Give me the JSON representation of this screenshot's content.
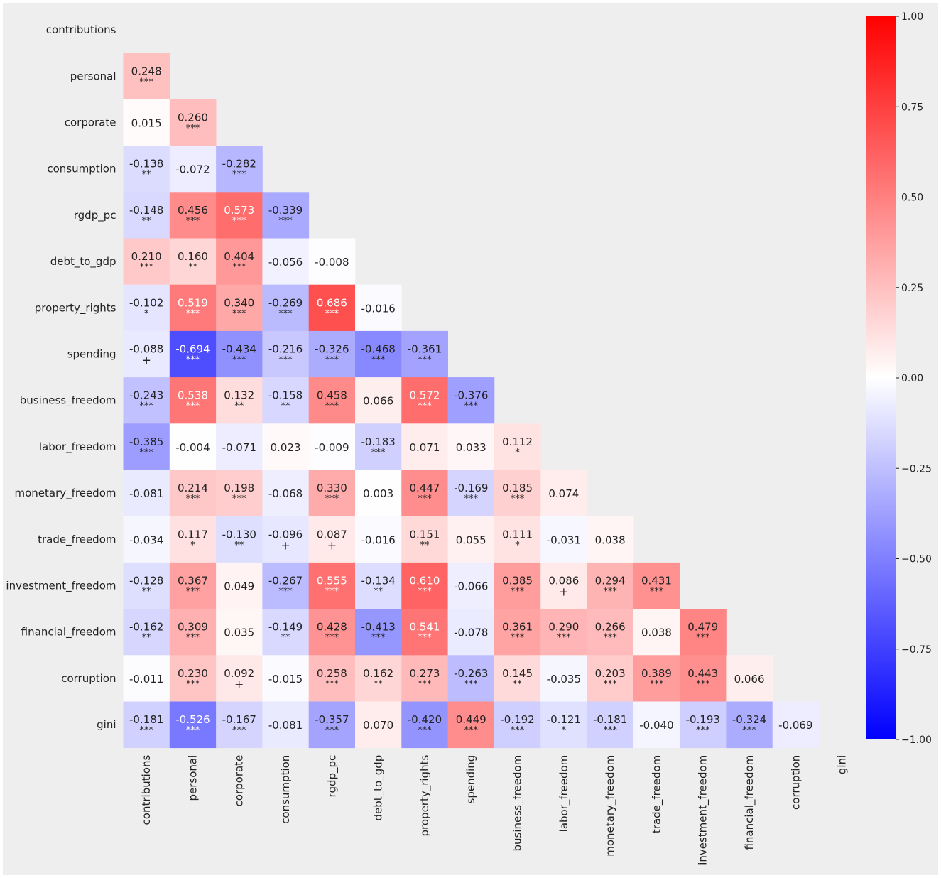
{
  "chart_data": {
    "type": "heatmap",
    "title": "",
    "xlabel": "",
    "ylabel": "",
    "variables": [
      "contributions",
      "personal",
      "corporate",
      "consumption",
      "rgdp_pc",
      "debt_to_gdp",
      "property_rights",
      "spending",
      "business_freedom",
      "labor_freedom",
      "monetary_freedom",
      "trade_freedom",
      "investment_freedom",
      "financial_freedom",
      "corruption",
      "gini"
    ],
    "matrix": [
      [],
      [
        "0.248"
      ],
      [
        "0.015",
        "0.260"
      ],
      [
        "-0.138",
        "-0.072",
        "-0.282"
      ],
      [
        "-0.148",
        "0.456",
        "0.573",
        "-0.339"
      ],
      [
        "0.210",
        "0.160",
        "0.404",
        "-0.056",
        "-0.008"
      ],
      [
        "-0.102",
        "0.519",
        "0.340",
        "-0.269",
        "0.686",
        "-0.016"
      ],
      [
        "-0.088",
        "-0.694",
        "-0.434",
        "-0.216",
        "-0.326",
        "-0.468",
        "-0.361"
      ],
      [
        "-0.243",
        "0.538",
        "0.132",
        "-0.158",
        "0.458",
        "0.066",
        "0.572",
        "-0.376"
      ],
      [
        "-0.385",
        "-0.004",
        "-0.071",
        "0.023",
        "-0.009",
        "-0.183",
        "0.071",
        "0.033",
        "0.112"
      ],
      [
        "-0.081",
        "0.214",
        "0.198",
        "-0.068",
        "0.330",
        "0.003",
        "0.447",
        "-0.169",
        "0.185",
        "0.074"
      ],
      [
        "-0.034",
        "0.117",
        "-0.130",
        "-0.096",
        "0.087",
        "-0.016",
        "0.151",
        "0.055",
        "0.111",
        "-0.031",
        "0.038"
      ],
      [
        "-0.128",
        "0.367",
        "0.049",
        "-0.267",
        "0.555",
        "-0.134",
        "0.610",
        "-0.066",
        "0.385",
        "0.086",
        "0.294",
        "0.431"
      ],
      [
        "-0.162",
        "0.309",
        "0.035",
        "-0.149",
        "0.428",
        "-0.413",
        "0.541",
        "-0.078",
        "0.361",
        "0.290",
        "0.266",
        "0.038",
        "0.479"
      ],
      [
        "-0.011",
        "0.230",
        "0.092",
        "-0.015",
        "0.258",
        "0.162",
        "0.273",
        "-0.263",
        "0.145",
        "-0.035",
        "0.203",
        "0.389",
        "0.443",
        "0.066"
      ],
      [
        "-0.181",
        "-0.526",
        "-0.167",
        "-0.081",
        "-0.357",
        "0.070",
        "-0.420",
        "0.449",
        "-0.192",
        "-0.121",
        "-0.181",
        "-0.040",
        "-0.193",
        "-0.324",
        "-0.069"
      ]
    ],
    "significance": [
      [],
      [
        "***"
      ],
      [
        "",
        "***"
      ],
      [
        "**",
        "",
        "***"
      ],
      [
        "**",
        "***",
        "***",
        "***"
      ],
      [
        "***",
        "**",
        "***",
        "",
        ""
      ],
      [
        "*",
        "***",
        "***",
        "***",
        "***",
        ""
      ],
      [
        "+",
        "***",
        "***",
        "***",
        "***",
        "***",
        "***"
      ],
      [
        "***",
        "***",
        "**",
        "**",
        "***",
        "",
        "***",
        "***"
      ],
      [
        "***",
        "",
        "",
        "",
        "",
        "***",
        "",
        "",
        "*"
      ],
      [
        "",
        "***",
        "***",
        "",
        "***",
        "",
        "***",
        "***",
        "***",
        ""
      ],
      [
        "",
        "*",
        "**",
        "+",
        "+",
        "",
        "**",
        "",
        "*",
        "",
        ""
      ],
      [
        "**",
        "***",
        "",
        "***",
        "***",
        "**",
        "***",
        "",
        "***",
        "+",
        "***",
        "***"
      ],
      [
        "**",
        "***",
        "",
        "**",
        "***",
        "***",
        "***",
        "",
        "***",
        "***",
        "***",
        "",
        "***"
      ],
      [
        "",
        "***",
        "+",
        "",
        "***",
        "**",
        "***",
        "***",
        "**",
        "",
        "***",
        "***",
        "***",
        ""
      ],
      [
        "***",
        "***",
        "***",
        "",
        "***",
        "",
        "***",
        "***",
        "***",
        "*",
        "***",
        "",
        "***",
        "***",
        ""
      ]
    ],
    "colorbar": {
      "range": [
        -1.0,
        1.0
      ],
      "ticks": [
        "1.00",
        "0.75",
        "0.50",
        "0.25",
        "0.00",
        "−0.25",
        "−0.50",
        "−0.75",
        "−1.00"
      ],
      "colormap": "bwr"
    },
    "colors": {
      "low": "#0000ff",
      "mid": "#ffffff",
      "high": "#ff0000",
      "background": "#eeeeee",
      "text_dark": "#222222",
      "text_light": "#ffffff"
    }
  }
}
